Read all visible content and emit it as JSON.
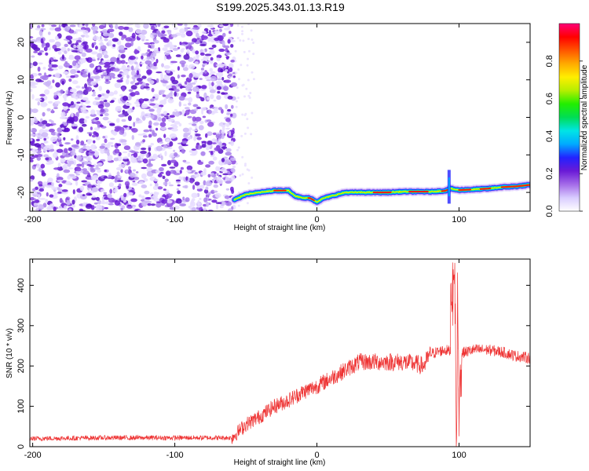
{
  "title": "S199.2025.343.01.13.R19",
  "chart_data": [
    {
      "type": "heatmap",
      "name": "spectrogram",
      "xlabel": "Height of straight line (km)",
      "ylabel": "Frequency (Hz)",
      "xlim": [
        -202,
        150
      ],
      "ylim": [
        -25,
        25
      ],
      "x_ticks": [
        -200,
        -100,
        0,
        100
      ],
      "y_ticks": [
        -20,
        -10,
        0,
        10,
        20
      ],
      "noise_region_x": [
        -202,
        -58
      ],
      "ridge": {
        "x": [
          -58,
          -50,
          -40,
          -30,
          -20,
          -15,
          -10,
          -5,
          0,
          5,
          10,
          15,
          20,
          30,
          40,
          50,
          60,
          70,
          80,
          90,
          94,
          100,
          110,
          120,
          130,
          140,
          150
        ],
        "frequency": [
          -22,
          -20.5,
          -20,
          -19.5,
          -19.5,
          -21,
          -21.5,
          -21.5,
          -22.5,
          -21.5,
          -21,
          -20.5,
          -20,
          -20,
          -20,
          -20,
          -19.8,
          -19.8,
          -19.8,
          -19.6,
          -19,
          -19.4,
          -19.2,
          -19,
          -18.6,
          -18.4,
          -18
        ]
      },
      "colorbar": {
        "label": "Normalized spectral amplitude",
        "ticks": [
          0.0,
          0.2,
          0.4,
          0.6,
          0.8
        ],
        "tick_labels": [
          "0.0",
          "0.2",
          "0.4",
          "0.6",
          "0.8"
        ],
        "colors": [
          "#ffffff",
          "#d9ccff",
          "#a46be8",
          "#6a1ad6",
          "#2222ff",
          "#00aaff",
          "#00e5e5",
          "#00dd55",
          "#22ee00",
          "#b5ee00",
          "#ffee00",
          "#ffaa00",
          "#ff5500",
          "#ff0000",
          "#ff0077"
        ]
      }
    },
    {
      "type": "line",
      "name": "snr",
      "xlabel": "Height of straight line (km)",
      "ylabel": "SNR (10 * v/v)",
      "xlim": [
        -202,
        150
      ],
      "ylim": [
        0,
        465
      ],
      "x_ticks": [
        -200,
        -100,
        0,
        100
      ],
      "y_ticks": [
        0,
        100,
        200,
        300,
        400
      ],
      "color": "#ee3333",
      "trend": {
        "x": [
          -202,
          -150,
          -100,
          -60,
          -50,
          -40,
          -30,
          -20,
          -10,
          0,
          10,
          20,
          30,
          40,
          50,
          60,
          70,
          75,
          80,
          90,
          95,
          98,
          100,
          105,
          110,
          120,
          130,
          140,
          150
        ],
        "y": [
          20,
          22,
          22,
          22,
          55,
          75,
          100,
          115,
          135,
          150,
          170,
          190,
          210,
          210,
          210,
          210,
          205,
          200,
          230,
          240,
          235,
          235,
          230,
          235,
          240,
          240,
          235,
          225,
          220
        ]
      },
      "spike": {
        "x": [
          96,
          97,
          98,
          98.5,
          99,
          100,
          101
        ],
        "y": [
          380,
          465,
          30,
          10,
          450,
          40,
          200
        ]
      }
    }
  ]
}
